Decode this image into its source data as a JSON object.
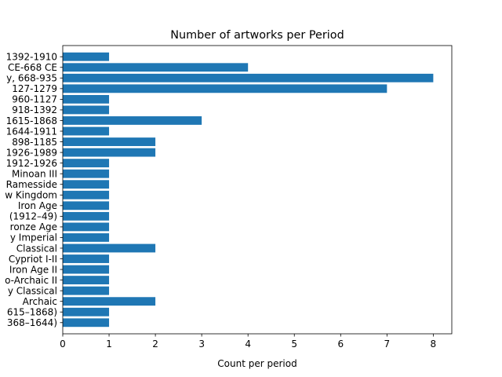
{
  "chart_data": {
    "type": "bar",
    "orientation": "horizontal",
    "title": "Number of artworks per Period",
    "xlabel": "Count per period",
    "ylabel": "",
    "xlim": [
      0,
      8.4
    ],
    "xticks": [
      0,
      1,
      2,
      3,
      4,
      5,
      6,
      7,
      8
    ],
    "grid": false,
    "color": "#1f77b4",
    "categories": [
      "1392-1910",
      "CE-668 CE",
      "y, 668-935",
      "127-1279",
      "960-1127",
      "918-1392",
      "1615-1868",
      "1644-1911",
      "898-1185",
      "1926-1989",
      "1912-1926",
      "Minoan III",
      "Ramesside",
      "w Kingdom",
      "Iron Age",
      "(1912–49)",
      "ronze Age",
      "y Imperial",
      "Classical",
      "Cypriot I-II",
      "Iron Age II",
      "o-Archaic II",
      "y Classical",
      "Archaic",
      "615–1868)",
      "368–1644)"
    ],
    "values": [
      1,
      4,
      8,
      7,
      1,
      1,
      3,
      1,
      2,
      2,
      1,
      1,
      1,
      1,
      1,
      1,
      1,
      1,
      2,
      1,
      1,
      1,
      1,
      2,
      1,
      1
    ]
  }
}
